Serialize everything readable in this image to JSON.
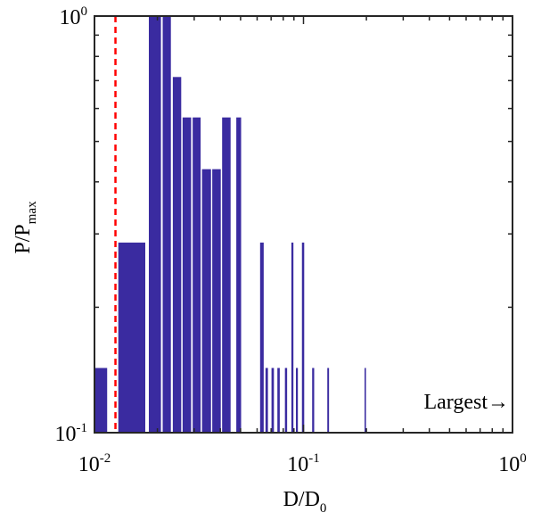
{
  "chart_data": {
    "type": "bar",
    "xscale": "log",
    "yscale": "log",
    "xlim": [
      0.01,
      1
    ],
    "ylim": [
      0.1,
      1
    ],
    "xlabel": {
      "base": "D/D",
      "sub": "0"
    },
    "ylabel": {
      "base": "P/P",
      "sub": "max"
    },
    "xticks": [
      {
        "value": 0.01,
        "base": "10",
        "exp": "-2"
      },
      {
        "value": 0.1,
        "base": "10",
        "exp": "-1"
      },
      {
        "value": 1,
        "base": "10",
        "exp": "0"
      }
    ],
    "yticks": [
      {
        "value": 0.1,
        "base": "10",
        "exp": "-1"
      },
      {
        "value": 1,
        "base": "10",
        "exp": "0"
      }
    ],
    "bar_color": "#3a2ba0",
    "bars": [
      {
        "x0": 0.01,
        "x1": 0.0115,
        "value": 0.143
      },
      {
        "x0": 0.013,
        "x1": 0.0175,
        "value": 0.286
      },
      {
        "x0": 0.0182,
        "x1": 0.0208,
        "value": 1.0
      },
      {
        "x0": 0.0212,
        "x1": 0.0232,
        "value": 1.0
      },
      {
        "x0": 0.0237,
        "x1": 0.026,
        "value": 0.714
      },
      {
        "x0": 0.0264,
        "x1": 0.029,
        "value": 0.571
      },
      {
        "x0": 0.0295,
        "x1": 0.0322,
        "value": 0.571
      },
      {
        "x0": 0.0327,
        "x1": 0.0361,
        "value": 0.429
      },
      {
        "x0": 0.0366,
        "x1": 0.0402,
        "value": 0.429
      },
      {
        "x0": 0.0408,
        "x1": 0.0448,
        "value": 0.571
      },
      {
        "x0": 0.0477,
        "x1": 0.0503,
        "value": 0.571
      },
      {
        "x0": 0.062,
        "x1": 0.0645,
        "value": 0.286
      },
      {
        "x0": 0.0658,
        "x1": 0.0676,
        "value": 0.143
      },
      {
        "x0": 0.0703,
        "x1": 0.0722,
        "value": 0.143
      },
      {
        "x0": 0.075,
        "x1": 0.077,
        "value": 0.143
      },
      {
        "x0": 0.0815,
        "x1": 0.0835,
        "value": 0.143
      },
      {
        "x0": 0.0875,
        "x1": 0.0895,
        "value": 0.286
      },
      {
        "x0": 0.092,
        "x1": 0.094,
        "value": 0.143
      },
      {
        "x0": 0.0983,
        "x1": 0.1008,
        "value": 0.286
      },
      {
        "x0": 0.11,
        "x1": 0.1125,
        "value": 0.143
      },
      {
        "x0": 0.13,
        "x1": 0.1325,
        "value": 0.143
      },
      {
        "x0": 0.196,
        "x1": 0.199,
        "value": 0.143
      },
      {
        "x0": 0.995,
        "x1": 1.0,
        "value": 0.143
      }
    ],
    "reference_line": {
      "x": 0.0126,
      "color": "#ff0000",
      "style": "dashed"
    },
    "annotation": {
      "text": "Largest→",
      "placement": "bottom-right"
    },
    "grid": false,
    "legend": null
  }
}
